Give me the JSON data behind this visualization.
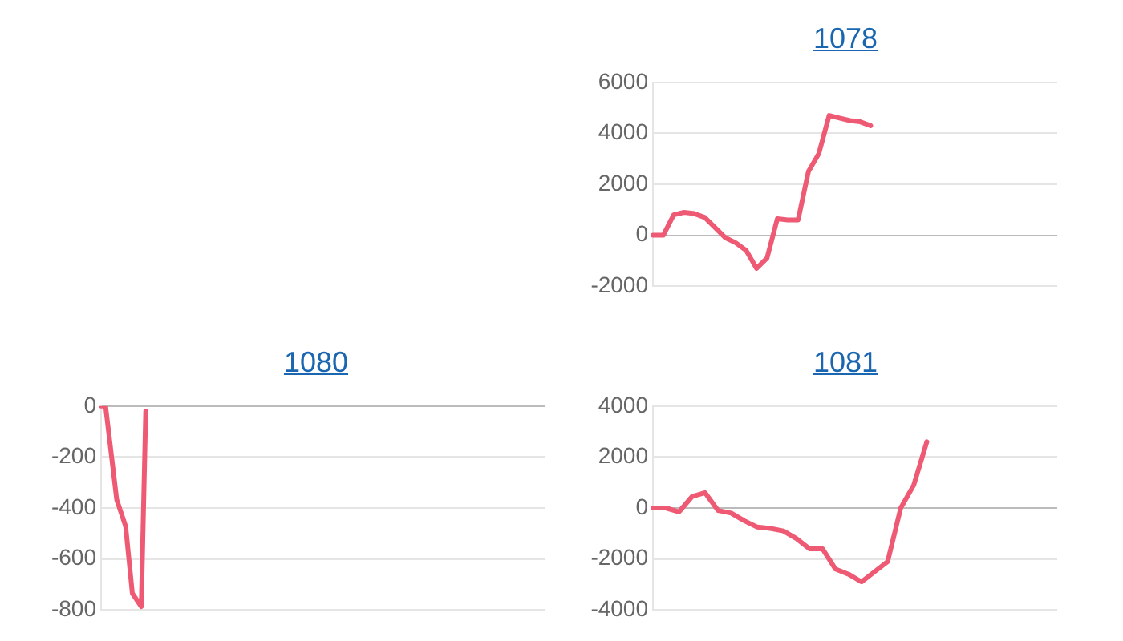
{
  "chart_data": [
    {
      "type": "line",
      "title": "1078",
      "categories": [
        null,
        null,
        null,
        null,
        null,
        null,
        null,
        null,
        null,
        null,
        null,
        null,
        null,
        null,
        null,
        null,
        null,
        null,
        null,
        null,
        null,
        null,
        null,
        null,
        null,
        null,
        null,
        null,
        null,
        null,
        null,
        null,
        null,
        null,
        null,
        null,
        null,
        null,
        null,
        null
      ],
      "series": [
        {
          "color": "#ee5a73",
          "values": [
            0,
            0,
            800,
            900,
            850,
            700,
            300,
            -100,
            -300,
            -600,
            -1300,
            -900,
            650,
            600,
            600,
            2500,
            3200,
            4700,
            4600,
            4500,
            4450,
            4300,
            null,
            null,
            null,
            null,
            null,
            null,
            null,
            null,
            null,
            null,
            null,
            null,
            null,
            null,
            null,
            null,
            null,
            null
          ]
        }
      ],
      "ylim": [
        -2000,
        6000
      ],
      "yticks": [
        -2000,
        0,
        2000,
        4000,
        6000
      ],
      "grid": "y",
      "legend": false,
      "tick_labels": "y",
      "marker": "none",
      "line_style": "solid"
    },
    {
      "type": "line",
      "title": "1080",
      "categories": [
        null,
        null,
        null,
        null,
        null,
        null,
        null,
        null,
        null,
        null,
        null,
        null,
        null,
        null,
        null,
        null,
        null,
        null,
        null,
        null,
        null,
        null,
        null,
        null,
        null,
        null,
        null,
        null,
        null,
        null,
        null,
        null,
        null,
        null,
        null,
        null,
        null,
        null,
        null,
        null,
        null,
        null,
        null,
        null,
        null,
        null,
        null,
        null,
        null,
        null,
        null,
        null,
        null,
        null,
        null,
        null,
        null,
        null,
        null,
        null,
        null,
        null,
        null,
        null,
        null,
        null,
        null,
        null,
        null,
        null,
        null,
        null,
        null,
        null,
        null,
        null,
        null,
        null,
        null,
        null,
        null,
        null,
        null,
        null,
        null,
        null,
        null,
        null,
        null,
        null,
        null,
        null,
        null,
        null,
        null,
        null,
        null,
        null,
        null,
        null,
        null,
        null,
        null,
        null,
        null,
        null,
        null,
        null,
        null,
        null,
        null,
        null,
        null,
        null,
        null,
        null,
        null,
        null,
        null,
        null,
        null,
        null,
        null,
        null,
        null,
        null,
        null,
        null,
        null,
        null,
        null,
        null,
        null,
        null,
        null,
        null,
        null,
        null,
        null,
        null,
        null,
        null,
        null,
        null,
        null,
        null,
        null,
        null,
        null,
        null,
        null,
        null,
        null,
        null,
        null,
        null,
        null,
        null,
        null,
        null,
        null,
        null,
        null,
        null,
        null,
        null,
        null,
        null,
        null,
        null,
        null,
        null,
        null,
        null,
        null,
        null,
        null,
        null,
        null,
        null,
        null,
        null,
        null,
        null,
        null,
        null,
        null,
        null,
        null,
        null,
        null,
        null,
        null,
        null,
        null,
        null,
        null,
        null,
        null,
        null
      ],
      "series": [
        {
          "color": "#ee5a73",
          "values": [
            0,
            null,
            0,
            null,
            null,
            null,
            null,
            -367,
            null,
            null,
            null,
            -472,
            null,
            null,
            -735,
            null,
            null,
            null,
            -787,
            null,
            -20,
            null,
            null,
            null,
            null,
            null,
            null,
            null,
            null,
            null,
            null,
            null,
            null,
            null,
            null,
            null,
            null,
            null,
            null,
            null,
            null,
            null,
            null,
            null,
            null,
            null,
            null,
            null,
            null,
            null,
            null,
            null,
            null,
            null,
            null,
            null,
            null,
            null,
            null,
            null,
            null,
            null,
            null,
            null,
            null,
            null,
            null,
            null,
            null,
            null,
            null,
            null,
            null,
            null,
            null,
            null,
            null,
            null,
            null,
            null,
            null,
            null,
            null,
            null,
            null,
            null,
            null,
            null,
            null,
            null,
            null,
            null,
            null,
            null,
            null,
            null,
            null,
            null,
            null,
            null,
            null,
            null,
            null,
            null,
            null,
            null,
            null,
            null,
            null,
            null,
            null,
            null,
            null,
            null,
            null,
            null,
            null,
            null,
            null,
            null,
            null,
            null,
            null,
            null,
            null,
            null,
            null,
            null,
            null,
            null,
            null,
            null,
            null,
            null,
            null,
            null,
            null,
            null,
            null,
            null,
            null,
            null,
            null,
            null,
            null,
            null,
            null,
            null,
            null,
            null,
            null,
            null,
            null,
            null,
            null,
            null,
            null,
            null,
            null,
            null,
            null,
            null,
            null,
            null,
            null,
            null,
            null,
            null,
            null,
            null,
            null,
            null,
            null,
            null,
            null,
            null,
            null,
            null,
            null,
            null,
            null,
            null,
            null,
            null,
            null,
            null,
            null,
            null,
            null,
            null,
            null,
            null,
            null,
            null,
            null,
            null,
            null,
            null,
            null,
            null
          ]
        }
      ],
      "ylim": [
        -800,
        0
      ],
      "yticks": [
        -800,
        -600,
        -400,
        -200,
        0
      ],
      "grid": "y",
      "legend": false,
      "tick_labels": "y",
      "marker": "none",
      "line_style": "solid"
    },
    {
      "type": "line",
      "title": "1081",
      "categories": [
        null,
        null,
        null,
        null,
        null,
        null,
        null,
        null,
        null,
        null,
        null,
        null,
        null,
        null,
        null,
        null,
        null,
        null,
        null,
        null,
        null,
        null,
        null,
        null,
        null,
        null,
        null,
        null,
        null,
        null,
        null,
        null
      ],
      "series": [
        {
          "color": "#ee5a73",
          "values": [
            0,
            0,
            -150,
            450,
            600,
            -100,
            -200,
            -500,
            -750,
            -800,
            -900,
            -1200,
            -1600,
            -1600,
            -2400,
            -2600,
            -2900,
            -2500,
            -2100,
            0,
            900,
            2600,
            null,
            null,
            null,
            null,
            null,
            null,
            null,
            null,
            null,
            null
          ]
        }
      ],
      "ylim": [
        -4000,
        4000
      ],
      "yticks": [
        -4000,
        -2000,
        0,
        2000,
        4000
      ],
      "grid": "y",
      "legend": false,
      "tick_labels": "y",
      "marker": "none",
      "line_style": "solid"
    }
  ]
}
